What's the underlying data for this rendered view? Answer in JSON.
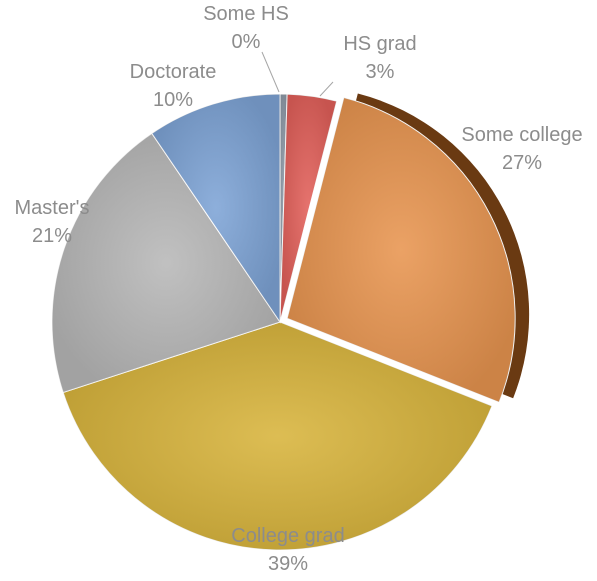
{
  "chart_data": {
    "type": "pie",
    "title": "",
    "slices": [
      {
        "label": "Some HS",
        "value": 0.5,
        "display": "0%",
        "color": "#8e9aa8"
      },
      {
        "label": "HS grad",
        "value": 3.5,
        "display": "3%",
        "color": "#e2605a"
      },
      {
        "label": "Some college",
        "value": 27,
        "display": "27%",
        "color": "#e89550"
      },
      {
        "label": "College grad",
        "value": 39,
        "display": "39%",
        "color": "#d8b43c"
      },
      {
        "label": "Master's",
        "value": 20.5,
        "display": "21%",
        "color": "#b8b8b8"
      },
      {
        "label": "Doctorate",
        "value": 9.5,
        "display": "10%",
        "color": "#7ea4d6"
      }
    ],
    "legend": "none",
    "start_angle_deg": 0,
    "direction": "clockwise"
  }
}
